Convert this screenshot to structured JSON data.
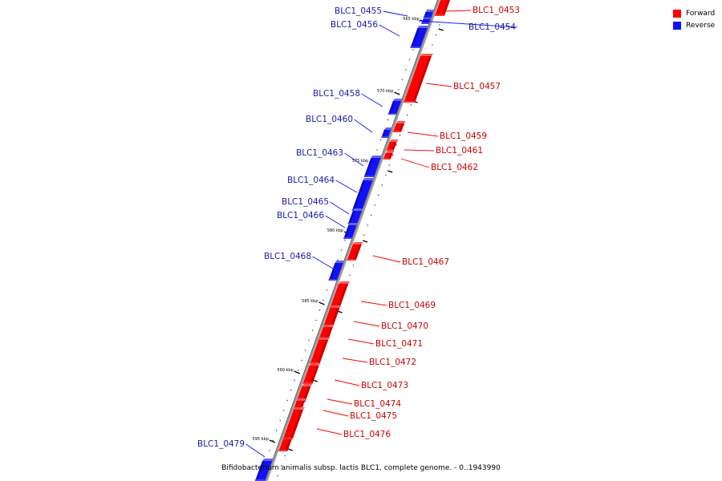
{
  "legend": [
    {
      "label": "Forward",
      "color": "#ff0000"
    },
    {
      "label": "Reverse",
      "color": "#1111ff"
    }
  ],
  "caption": "Bifidobacterium animalis subsp. lactis BLC1, complete genome. - 0..1943990",
  "strand_colors": {
    "forward": "#ff0000",
    "reverse": "#1111ff",
    "axis": "#999999",
    "forward_label": "#cc0000",
    "reverse_label": "#1a1aa8"
  },
  "kbp_marks": [
    "565 kbp",
    "570 kbp",
    "575 kbp",
    "580 kbp",
    "585 kbp",
    "590 kbp",
    "595 kbp"
  ],
  "genes": [
    {
      "name": "BLC1_0453",
      "strand": "forward"
    },
    {
      "name": "BLC1_0454",
      "strand": "reverse"
    },
    {
      "name": "BLC1_0455",
      "strand": "reverse"
    },
    {
      "name": "BLC1_0456",
      "strand": "reverse"
    },
    {
      "name": "BLC1_0457",
      "strand": "forward"
    },
    {
      "name": "BLC1_0458",
      "strand": "reverse"
    },
    {
      "name": "BLC1_0459",
      "strand": "forward"
    },
    {
      "name": "BLC1_0460",
      "strand": "reverse"
    },
    {
      "name": "BLC1_0461",
      "strand": "forward"
    },
    {
      "name": "BLC1_0462",
      "strand": "forward"
    },
    {
      "name": "BLC1_0463",
      "strand": "reverse"
    },
    {
      "name": "BLC1_0464",
      "strand": "reverse"
    },
    {
      "name": "BLC1_0465",
      "strand": "reverse"
    },
    {
      "name": "BLC1_0466",
      "strand": "reverse"
    },
    {
      "name": "BLC1_0467",
      "strand": "forward"
    },
    {
      "name": "BLC1_0468",
      "strand": "reverse"
    },
    {
      "name": "BLC1_0469",
      "strand": "forward"
    },
    {
      "name": "BLC1_0470",
      "strand": "forward"
    },
    {
      "name": "BLC1_0471",
      "strand": "forward"
    },
    {
      "name": "BLC1_0472",
      "strand": "forward"
    },
    {
      "name": "BLC1_0473",
      "strand": "forward"
    },
    {
      "name": "BLC1_0474",
      "strand": "forward"
    },
    {
      "name": "BLC1_0475",
      "strand": "forward"
    },
    {
      "name": "BLC1_0476",
      "strand": "forward"
    },
    {
      "name": "BLC1_0479",
      "strand": "reverse"
    }
  ]
}
